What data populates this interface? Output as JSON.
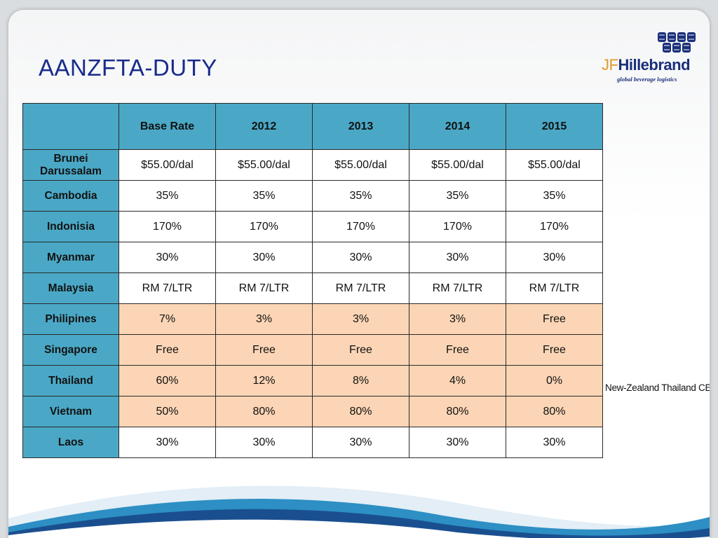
{
  "slide": {
    "title": "AANZFTA-DUTY",
    "side_note": "New-Zealand Thailand CEP"
  },
  "logo": {
    "prefix": "JF",
    "name": "Hillebrand",
    "tagline": "global beverage logistics"
  },
  "table": {
    "columns": [
      "",
      "Base Rate",
      "2012",
      "2013",
      "2014",
      "2015"
    ],
    "rows": [
      {
        "country": "Brunei Darussalam",
        "values": [
          "$55.00/dal",
          "$55.00/dal",
          "$55.00/dal",
          "$55.00/dal",
          "$55.00/dal"
        ],
        "highlight": false
      },
      {
        "country": "Cambodia",
        "values": [
          "35%",
          "35%",
          "35%",
          "35%",
          "35%"
        ],
        "highlight": false
      },
      {
        "country": "Indonisia",
        "values": [
          "170%",
          "170%",
          "170%",
          "170%",
          "170%"
        ],
        "highlight": false
      },
      {
        "country": "Myanmar",
        "values": [
          "30%",
          "30%",
          "30%",
          "30%",
          "30%"
        ],
        "highlight": false
      },
      {
        "country": "Malaysia",
        "values": [
          "RM 7/LTR",
          "RM 7/LTR",
          "RM 7/LTR",
          "RM 7/LTR",
          "RM 7/LTR"
        ],
        "highlight": false
      },
      {
        "country": "Philipines",
        "values": [
          "7%",
          "3%",
          "3%",
          "3%",
          "Free"
        ],
        "highlight": true
      },
      {
        "country": "Singapore",
        "values": [
          "Free",
          "Free",
          "Free",
          "Free",
          "Free"
        ],
        "highlight": true
      },
      {
        "country": "Thailand",
        "values": [
          "60%",
          "12%",
          "8%",
          "4%",
          "0%"
        ],
        "highlight": true
      },
      {
        "country": "Vietnam",
        "values": [
          "50%",
          "80%",
          "80%",
          "80%",
          "80%"
        ],
        "highlight": true
      },
      {
        "country": "Laos",
        "values": [
          "30%",
          "30%",
          "30%",
          "30%",
          "30%"
        ],
        "highlight": false
      }
    ]
  },
  "colors": {
    "header_blue": "#4aa8c6",
    "highlight_peach": "#fbd5b5",
    "title_blue": "#1a2b8c"
  }
}
